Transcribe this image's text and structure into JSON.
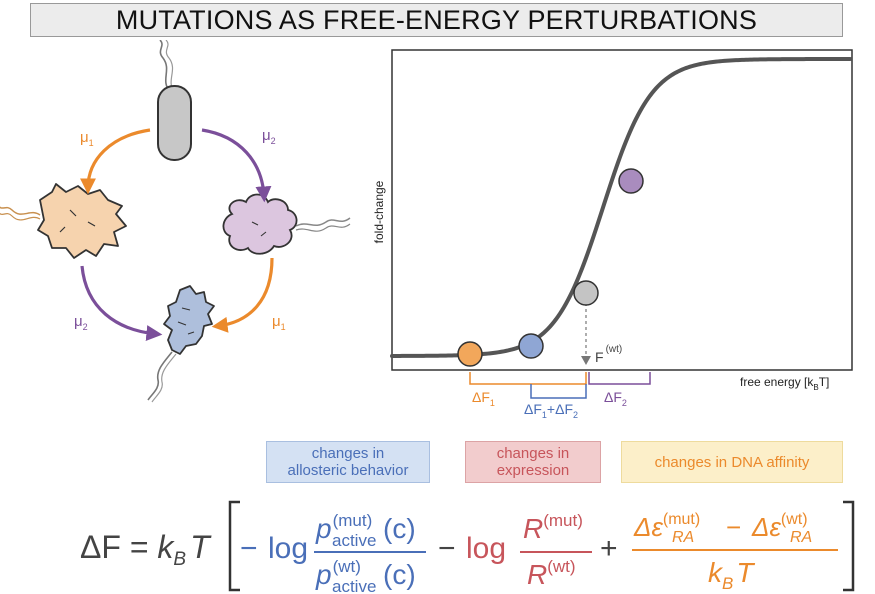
{
  "title": "MUTATIONS AS FREE-ENERGY PERTURBATIONS",
  "colors": {
    "orange": "#eb8a2c",
    "purple": "#7b4f9a",
    "blue": "#4a6fb8",
    "red": "#c7555b",
    "curve": "#555555",
    "gray_cell": "#c7c7c7",
    "orange_cell": "#f6d3ae",
    "purple_cell": "#dcc6df",
    "blue_cell": "#aebfdc"
  },
  "mutation_diagram": {
    "mu1_label": "μ",
    "mu1_sub": "1",
    "mu2_label": "μ",
    "mu2_sub": "2"
  },
  "chart_data": {
    "type": "line",
    "xlabel": "free energy [k",
    "xlabel_sub": "B",
    "xlabel_tail": "T]",
    "ylabel": "fold-change",
    "curve": {
      "shape": "sigmoid"
    },
    "points": [
      {
        "name": "orange",
        "color": "#f2a75b"
      },
      {
        "name": "blue",
        "color": "#8fa6d4"
      },
      {
        "name": "wild-type",
        "color": "#c4c4c4"
      },
      {
        "name": "purple",
        "color": "#a98cbe"
      }
    ],
    "wt_label": "F",
    "wt_sup": "(wt)",
    "brackets": {
      "df1": {
        "label": "ΔF",
        "sub": "1",
        "color": "#eb8a2c"
      },
      "df12": {
        "label1": "ΔF",
        "sub1": "1",
        "plus": "+",
        "label2": "ΔF",
        "sub2": "2",
        "color": "#4a6fb8"
      },
      "df2": {
        "label": "ΔF",
        "sub": "2",
        "color": "#7b4f9a"
      }
    }
  },
  "categories": {
    "allosteric": {
      "line1": "changes in",
      "line2": "allosteric behavior"
    },
    "expression": {
      "line1": "changes in",
      "line2": "expression"
    },
    "dna": {
      "line1": "changes in DNA affinity"
    }
  },
  "equation": {
    "lhs": "ΔF = ",
    "kb": "k",
    "kb_sub": "B",
    "T": "T",
    "minus1": "−",
    "log1": "log",
    "p": "p",
    "mut": "(mut)",
    "wt": "(wt)",
    "active": "active",
    "c": "(c)",
    "minus2": "−",
    "log2": "log",
    "R": "R",
    "plus": "+",
    "delta_eps": "Δε",
    "RA": "RA",
    "minus3": "−",
    "den_k": "k",
    "den_B": "B",
    "den_T": "T"
  }
}
